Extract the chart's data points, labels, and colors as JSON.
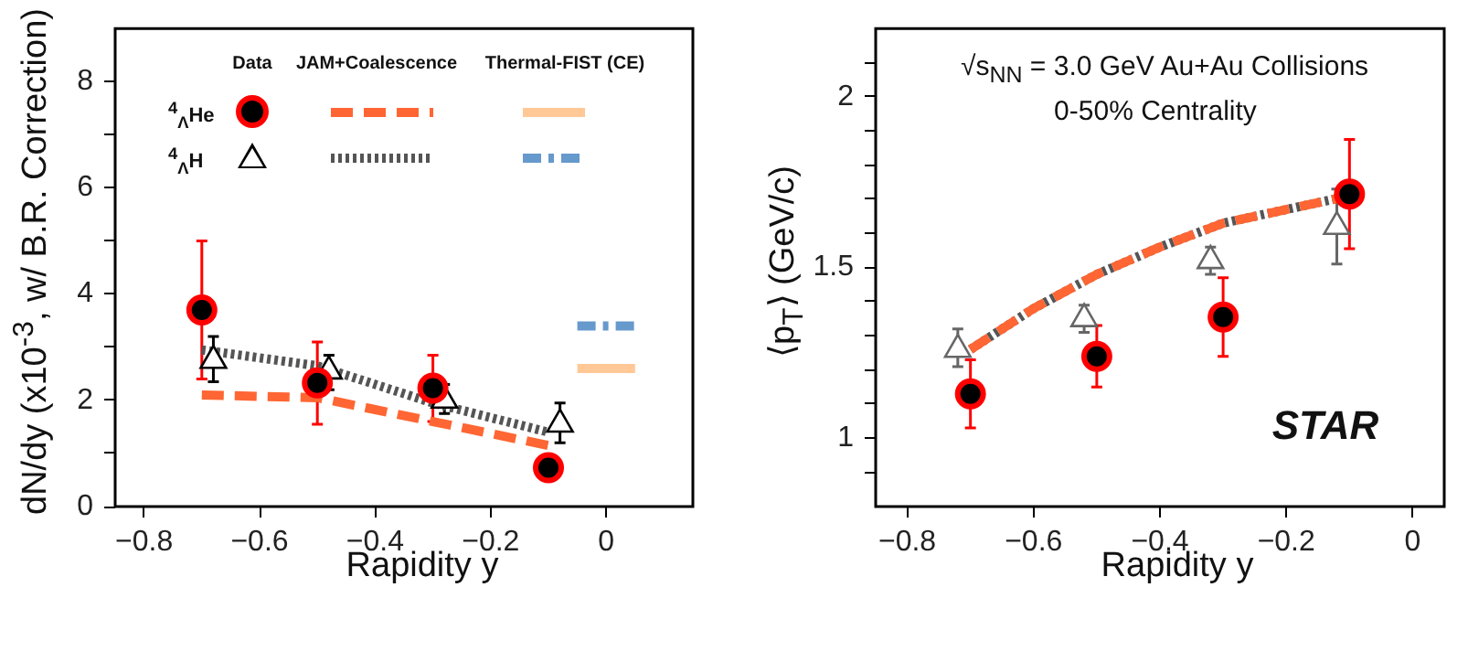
{
  "chart_data": [
    {
      "type": "scatter",
      "xlabel": "Rapidity y",
      "ylabel": "dN/dy (x10$^{-3}$, w/ B.R. Correction)",
      "xlim": [
        -0.85,
        0.15
      ],
      "xticks": [
        -0.8,
        -0.6,
        -0.4,
        -0.2,
        0
      ],
      "ylim": [
        0,
        9
      ],
      "yticks": [
        0,
        {
          "value": 1,
          "label": null
        },
        2,
        {
          "value": 3,
          "label": null
        },
        4,
        {
          "value": 5,
          "label": null
        },
        6,
        {
          "value": 7,
          "label": null
        },
        8
      ],
      "grid": false,
      "legend": false,
      "annotations": [
        "Data",
        "JAM+Coalescence",
        "Thermal-FIST (CE)",
        "$^{4}$$_{Λ}$He",
        "$^{4}$$_{Λ}$H"
      ],
      "series": [
        {
          "type": "scatter",
          "color": "#ff0000",
          "marker": "circle",
          "x": [
            -0.7,
            -0.5,
            -0.3,
            -0.1
          ],
          "values": [
            3.7,
            2.33,
            2.23,
            0.73
          ],
          "errors": [
            [
              2.4,
              5.0
            ],
            [
              1.55,
              3.1
            ],
            [
              1.6,
              2.85
            ],
            [
              0.55,
              0.95
            ]
          ]
        },
        {
          "type": "scatter",
          "color": "#000000",
          "marker": "triangle",
          "x": [
            -0.68,
            -0.48,
            -0.28,
            -0.08
          ],
          "values": [
            2.75,
            2.55,
            2.0,
            1.55
          ],
          "errors": [
            [
              2.35,
              3.2
            ],
            [
              2.2,
              2.85
            ],
            [
              1.75,
              2.3
            ],
            [
              1.2,
              1.95
            ]
          ]
        },
        {
          "type": "line",
          "color": "#ff6633",
          "line_style": "dashed",
          "x": [
            -0.7,
            -0.5,
            -0.3,
            -0.1
          ],
          "values": [
            2.1,
            2.05,
            1.6,
            1.15
          ]
        },
        {
          "type": "line",
          "color": "#555555",
          "line_style": "dotted",
          "x": [
            -0.7,
            -0.5,
            -0.3,
            -0.1
          ],
          "values": [
            2.95,
            2.65,
            1.95,
            1.4
          ]
        },
        {
          "type": "line",
          "color": "#ffc896",
          "line_style": "solid",
          "x": [
            -0.05,
            0.05
          ],
          "values": [
            2.6,
            2.6
          ]
        },
        {
          "type": "line",
          "color": "#6699cc",
          "line_style": "dashdot",
          "x": [
            -0.05,
            0.05
          ],
          "values": [
            3.4,
            3.4
          ]
        }
      ]
    },
    {
      "type": "scatter",
      "xlabel": "Rapidity y",
      "ylabel": "⟨p$_{T}$⟩ (GeV/c)",
      "xlim": [
        -0.85,
        0.05
      ],
      "xticks": [
        -0.8,
        -0.6,
        -0.4,
        -0.2,
        0
      ],
      "ylim": [
        0.8,
        2.2
      ],
      "yticks": [
        {
          "value": 0.9,
          "label": null
        },
        1,
        {
          "value": 1.1,
          "label": null
        },
        {
          "value": 1.2,
          "label": null
        },
        {
          "value": 1.3,
          "label": null
        },
        {
          "value": 1.4,
          "label": null
        },
        1.5,
        {
          "value": 1.6,
          "label": null
        },
        {
          "value": 1.7,
          "label": null
        },
        {
          "value": 1.8,
          "label": null
        },
        {
          "value": 1.9,
          "label": null
        },
        2,
        {
          "value": 2.1,
          "label": null
        }
      ],
      "grid": false,
      "legend": false,
      "annotations": [
        "√s$_{NN}$ = 3.0 GeV Au+Au Collisions",
        "0-50% Centrality",
        "STAR"
      ],
      "series": [
        {
          "type": "line",
          "color": "#ff6633",
          "line_style": "dashed",
          "x": [
            -0.7,
            -0.6,
            -0.5,
            -0.4,
            -0.3,
            -0.2,
            -0.1
          ],
          "values": [
            1.26,
            1.38,
            1.48,
            1.56,
            1.63,
            1.67,
            1.71
          ]
        },
        {
          "type": "line",
          "color": "#555555",
          "line_style": "dotted",
          "x": [
            -0.7,
            -0.6,
            -0.5,
            -0.4,
            -0.3,
            -0.2,
            -0.1
          ],
          "values": [
            1.26,
            1.38,
            1.48,
            1.56,
            1.63,
            1.67,
            1.71
          ]
        },
        {
          "type": "scatter",
          "color": "#666666",
          "marker": "triangle",
          "x": [
            -0.72,
            -0.52,
            -0.32,
            -0.12
          ],
          "values": [
            1.26,
            1.35,
            1.52,
            1.62
          ],
          "errors": [
            [
              1.21,
              1.32
            ],
            [
              1.31,
              1.39
            ],
            [
              1.48,
              1.56
            ],
            [
              1.51,
              1.73
            ]
          ]
        },
        {
          "type": "scatter",
          "color": "#ff0000",
          "marker": "circle",
          "x": [
            -0.7,
            -0.5,
            -0.3,
            -0.1
          ],
          "values": [
            1.13,
            1.24,
            1.355,
            1.715
          ],
          "errors": [
            [
              1.03,
              1.23
            ],
            [
              1.15,
              1.33
            ],
            [
              1.24,
              1.47
            ],
            [
              1.555,
              1.875
            ]
          ]
        }
      ]
    }
  ]
}
